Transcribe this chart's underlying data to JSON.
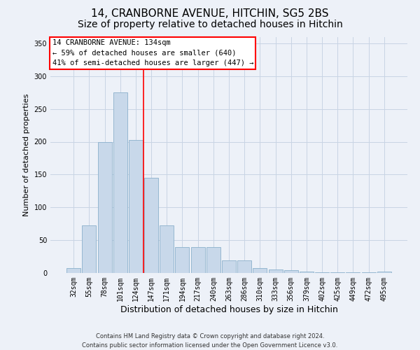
{
  "title": "14, CRANBORNE AVENUE, HITCHIN, SG5 2BS",
  "subtitle": "Size of property relative to detached houses in Hitchin",
  "xlabel": "Distribution of detached houses by size in Hitchin",
  "ylabel": "Number of detached properties",
  "bar_labels": [
    "32sqm",
    "55sqm",
    "78sqm",
    "101sqm",
    "124sqm",
    "147sqm",
    "171sqm",
    "194sqm",
    "217sqm",
    "240sqm",
    "263sqm",
    "286sqm",
    "310sqm",
    "333sqm",
    "356sqm",
    "379sqm",
    "402sqm",
    "425sqm",
    "449sqm",
    "472sqm",
    "495sqm"
  ],
  "bar_values": [
    7,
    73,
    200,
    275,
    203,
    145,
    73,
    40,
    40,
    40,
    19,
    19,
    7,
    5,
    4,
    2,
    1,
    1,
    1,
    1,
    2
  ],
  "bar_color": "#c8d8ea",
  "bar_edge_color": "#8ab0cc",
  "grid_color": "#c8d4e4",
  "bg_color": "#edf1f8",
  "red_line_x": 4.5,
  "annotation_text": "14 CRANBORNE AVENUE: 134sqm\n← 59% of detached houses are smaller (640)\n41% of semi-detached houses are larger (447) →",
  "annotation_box_color": "white",
  "annotation_box_edge": "red",
  "ylim": [
    0,
    360
  ],
  "yticks": [
    0,
    50,
    100,
    150,
    200,
    250,
    300,
    350
  ],
  "footer": "Contains HM Land Registry data © Crown copyright and database right 2024.\nContains public sector information licensed under the Open Government Licence v3.0.",
  "title_fontsize": 11,
  "subtitle_fontsize": 10,
  "xlabel_fontsize": 9,
  "ylabel_fontsize": 8,
  "tick_fontsize": 7,
  "footer_fontsize": 6
}
